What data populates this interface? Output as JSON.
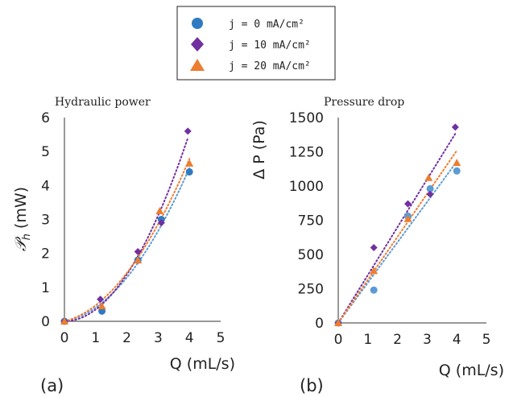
{
  "legend": {
    "entries": [
      {
        "label": "j = 0 mA/cm²",
        "marker": "circle",
        "color": "#2f7bc2"
      },
      {
        "label": "j = 10 mA/cm²",
        "marker": "diamond",
        "color": "#7030a0"
      },
      {
        "label": "j = 20 mA/cm²",
        "marker": "triangle",
        "color": "#ed7d31"
      }
    ]
  },
  "chart_data": [
    {
      "type": "scatter",
      "panel_label": "(a)",
      "title": "Hydraulic power",
      "xlabel": "Q (mL/s)",
      "ylabel": "𝒫_h (mW)",
      "ylabel_main": "𝒫",
      "ylabel_sub": "h",
      "ylabel_unit": " (mW)",
      "xlim": [
        0,
        5
      ],
      "ylim": [
        0,
        6
      ],
      "xticks": [
        0,
        1,
        2,
        3,
        4,
        5
      ],
      "yticks": [
        0,
        1,
        2,
        3,
        4,
        5,
        6
      ],
      "trendline": "quadratic",
      "grid": false,
      "series": [
        {
          "marker": "circle",
          "color": "#2f7bc2",
          "trend_color": "#5b9bd5",
          "x": [
            0,
            1.2,
            2.35,
            3.1,
            4.0
          ],
          "y": [
            0,
            0.3,
            1.8,
            3.0,
            4.4
          ]
        },
        {
          "marker": "diamond",
          "color": "#7030a0",
          "trend_color": "#7030a0",
          "x": [
            0,
            1.15,
            2.35,
            3.1,
            3.95
          ],
          "y": [
            0,
            0.65,
            2.05,
            2.9,
            5.6
          ]
        },
        {
          "marker": "triangle",
          "color": "#ed7d31",
          "trend_color": "#ed7d31",
          "x": [
            0,
            1.2,
            2.35,
            3.05,
            4.0
          ],
          "y": [
            0,
            0.45,
            1.8,
            3.25,
            4.65
          ]
        }
      ]
    },
    {
      "type": "scatter",
      "panel_label": "(b)",
      "title": "Pressure drop",
      "xlabel": "Q (mL/s)",
      "ylabel": "Δ P (Pa)",
      "xlim": [
        0,
        5
      ],
      "ylim": [
        0,
        1500
      ],
      "xticks": [
        0,
        1,
        2,
        3,
        4,
        5
      ],
      "yticks": [
        0,
        250,
        500,
        750,
        1000,
        1250,
        1500
      ],
      "trendline": "linear",
      "grid": false,
      "series": [
        {
          "marker": "circle",
          "color": "#5b9bd5",
          "trend_color": "#5b9bd5",
          "x": [
            0,
            1.2,
            2.35,
            3.1,
            4.0
          ],
          "y": [
            0,
            240,
            780,
            980,
            1110
          ]
        },
        {
          "marker": "diamond",
          "color": "#7030a0",
          "trend_color": "#7030a0",
          "x": [
            0,
            1.2,
            2.35,
            3.1,
            3.95
          ],
          "y": [
            0,
            550,
            870,
            940,
            1430
          ]
        },
        {
          "marker": "triangle",
          "color": "#ed7d31",
          "trend_color": "#ed7d31",
          "x": [
            0,
            1.2,
            2.35,
            3.05,
            4.0
          ],
          "y": [
            0,
            380,
            760,
            1060,
            1170
          ]
        }
      ]
    }
  ]
}
